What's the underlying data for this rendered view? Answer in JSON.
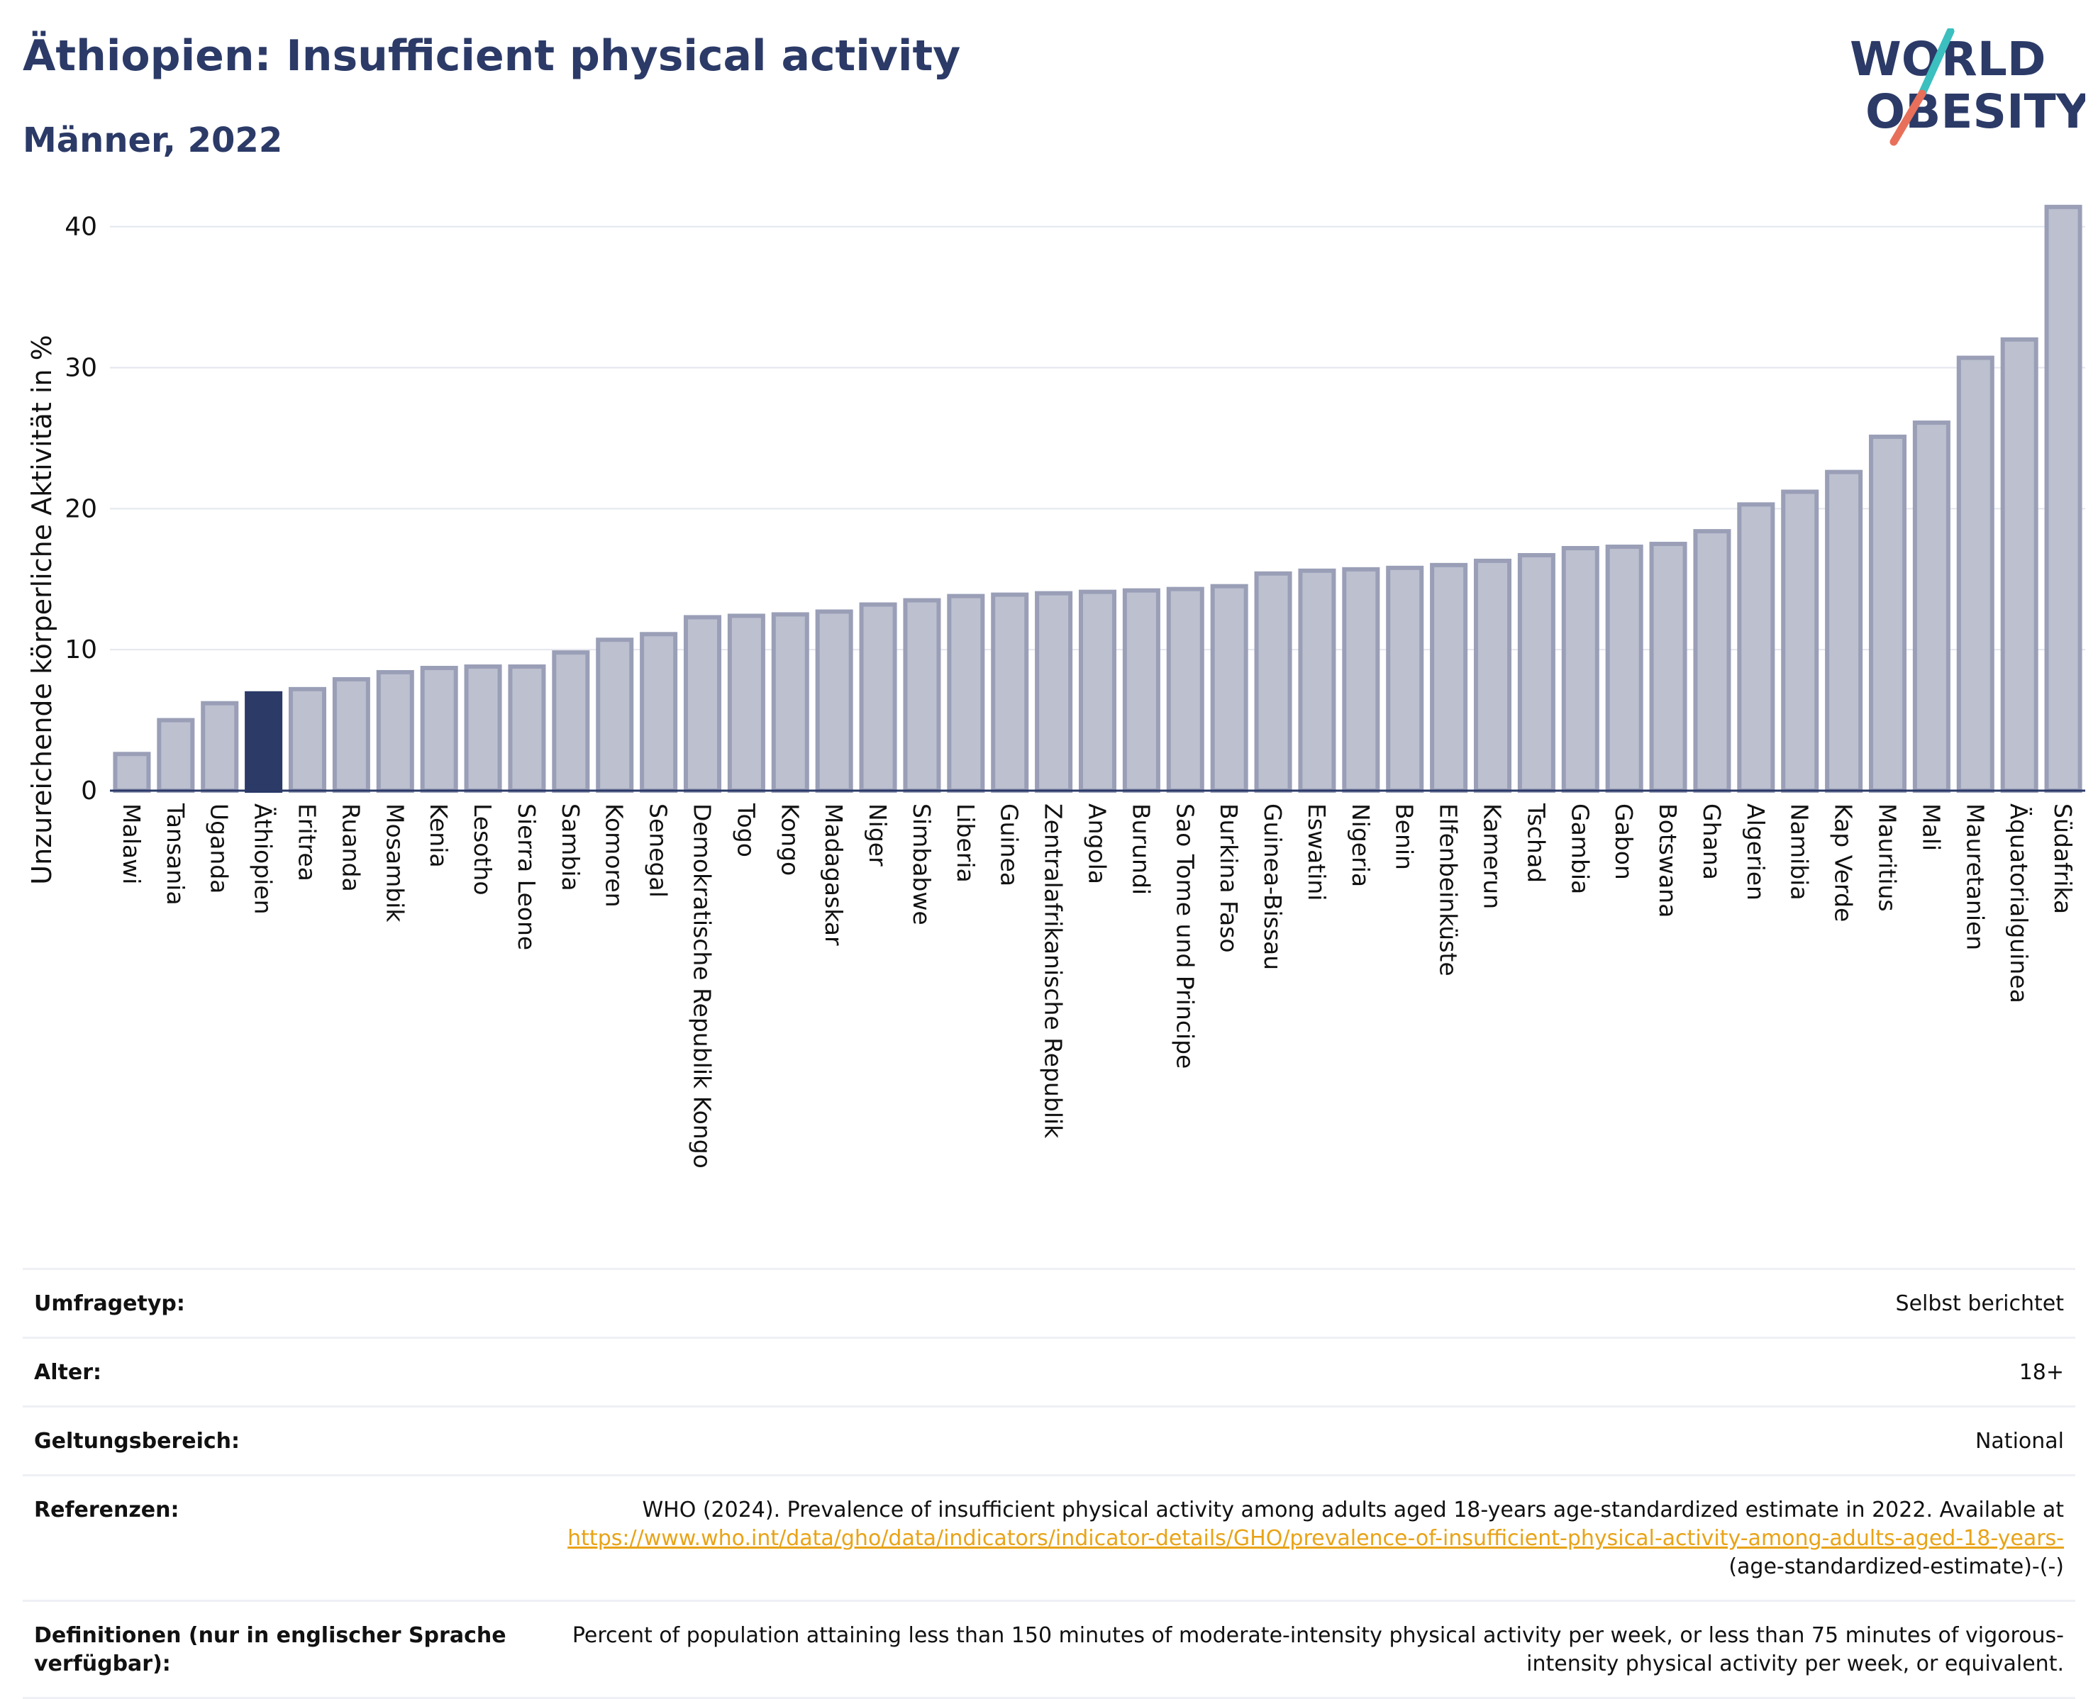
{
  "header": {
    "title": "Äthiopien: Insufficient physical activity",
    "subtitle": "Männer, 2022"
  },
  "logo": {
    "line1": "WORLD",
    "line2": "OBESITY",
    "accent_teal": "#3bbfbf",
    "accent_coral": "#e8705a"
  },
  "colors": {
    "bar": "#bcc0cf",
    "bar_border": "#9a9fb7",
    "highlight": "#2b3a67"
  },
  "chart_data": {
    "type": "bar",
    "ylabel": "Unzureichende körperliche Aktivität in %",
    "ylim": [
      0,
      43
    ],
    "yticks": [
      0,
      10,
      20,
      30,
      40
    ],
    "grid": true,
    "highlight": "Äthiopien",
    "categories": [
      "Malawi",
      "Tansania",
      "Uganda",
      "Äthiopien",
      "Eritrea",
      "Ruanda",
      "Mosambik",
      "Kenia",
      "Lesotho",
      "Sierra Leone",
      "Sambia",
      "Komoren",
      "Senegal",
      "Demokratische Republik Kongo",
      "Togo",
      "Kongo",
      "Madagaskar",
      "Niger",
      "Simbabwe",
      "Liberia",
      "Guinea",
      "Zentralafrikanische Republik",
      "Angola",
      "Burundi",
      "Sao Tome und Principe",
      "Burkina Faso",
      "Guinea-Bissau",
      "Eswatini",
      "Nigeria",
      "Benin",
      "Elfenbeinküste",
      "Kamerun",
      "Tschad",
      "Gambia",
      "Gabon",
      "Botswana",
      "Ghana",
      "Algerien",
      "Namibia",
      "Kap Verde",
      "Mauritius",
      "Mali",
      "Mauretanien",
      "Äquatorialguinea",
      "Südafrika"
    ],
    "values": [
      2.6,
      5.0,
      6.2,
      6.9,
      7.2,
      7.9,
      8.4,
      8.7,
      8.8,
      8.8,
      9.8,
      10.7,
      11.1,
      12.3,
      12.4,
      12.5,
      12.7,
      13.2,
      13.5,
      13.8,
      13.9,
      14.0,
      14.1,
      14.2,
      14.3,
      14.5,
      15.4,
      15.6,
      15.7,
      15.8,
      16.0,
      16.3,
      16.7,
      17.2,
      17.3,
      17.5,
      18.4,
      20.3,
      21.2,
      22.6,
      25.1,
      26.1,
      30.7,
      32.0,
      41.4
    ]
  },
  "info": {
    "survey_label": "Umfragetyp:",
    "survey_value": "Selbst berichtet",
    "age_label": "Alter:",
    "age_value": "18+",
    "scope_label": "Geltungsbereich:",
    "scope_value": "National",
    "ref_label": "Referenzen:",
    "ref_text": "WHO (2024). Prevalence of insufficient physical activity among adults aged 18-years age-standardized estimate in 2022. Available at",
    "ref_link": "https://www.who.int/data/gho/data/indicators/indicator-details/GHO/prevalence-of-insufficient-physical-activity-among-adults-aged-18-years-",
    "ref_tail": "(age-standardized-estimate)-(-)",
    "def_label": "Definitionen (nur in englischer Sprache verfügbar):",
    "def_text": "Percent of population attaining less than 150 minutes of moderate-intensity physical activity per week, or less than 75 minutes of vigorous-intensity physical activity per week, or equivalent."
  }
}
